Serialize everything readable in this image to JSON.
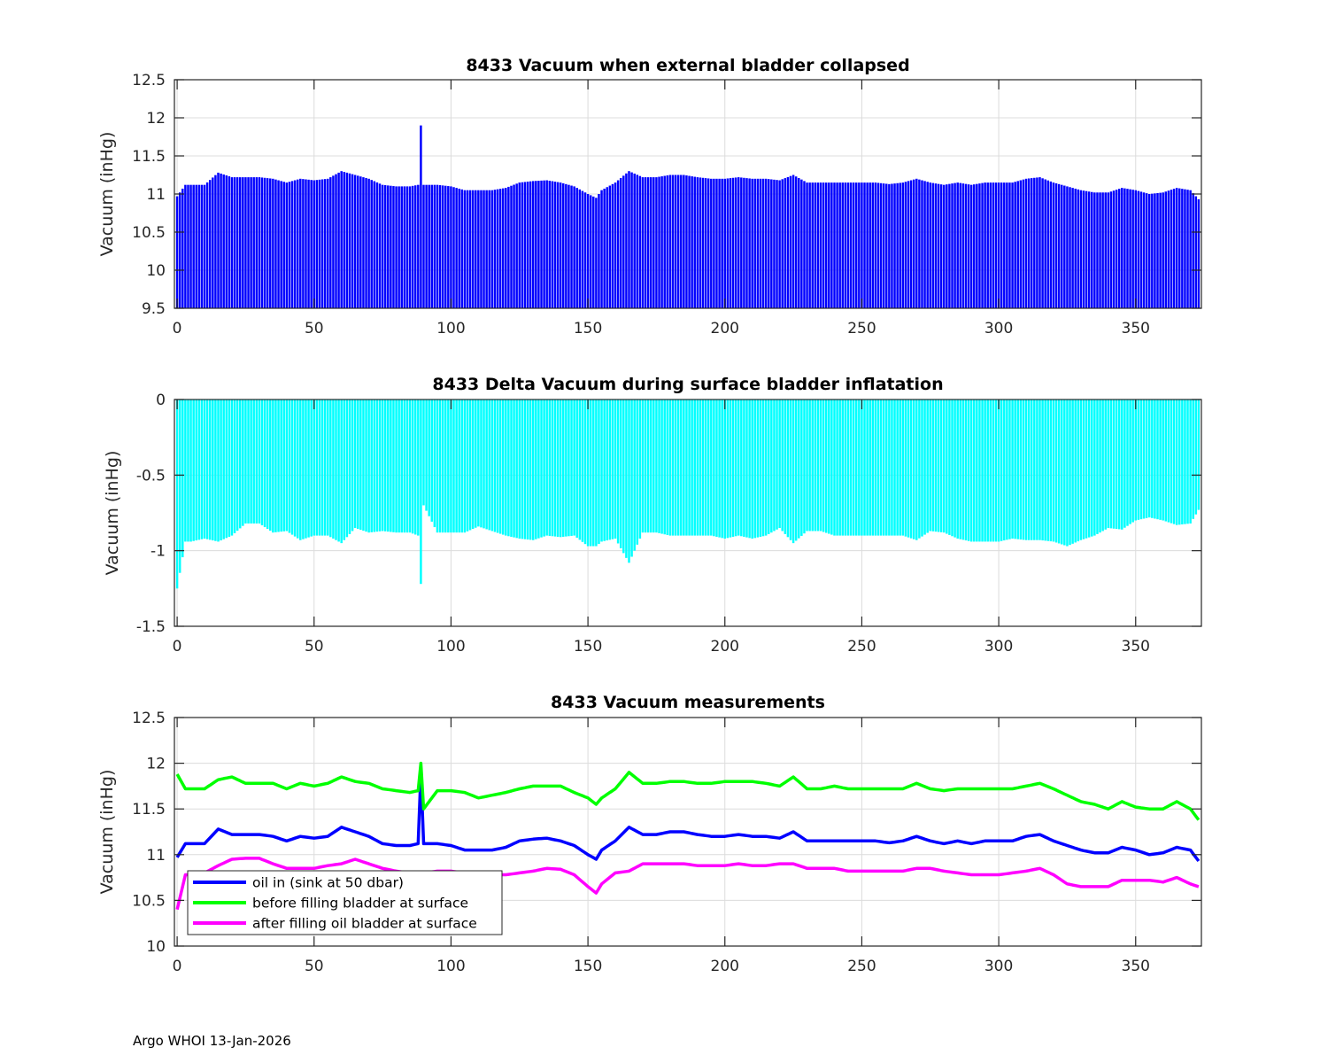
{
  "footer": "Argo WHOI 13-Jan-2026",
  "colors": {
    "oil_in": "#0000ff",
    "before": "#00ff00",
    "after": "#ff00ff",
    "delta": "#00ffff",
    "grid": "#dcdcdc",
    "axis": "#262626"
  },
  "chart_data": [
    {
      "type": "bar",
      "title": "8433 Vacuum when external bladder collapsed",
      "xlabel": "",
      "ylabel": "Vacuum (inHg)",
      "xlim": [
        -1,
        374
      ],
      "ylim": [
        9.5,
        12.5
      ],
      "xticks": [
        "0",
        "50",
        "100",
        "150",
        "200",
        "250",
        "300",
        "350"
      ],
      "yticks": [
        "9.5",
        "10",
        "10.5",
        "11",
        "11.5",
        "12",
        "12.5"
      ],
      "grid": true,
      "color": "#0000ff",
      "series_ref": "oil_in"
    },
    {
      "type": "bar",
      "title": "8433 Delta Vacuum during surface bladder inflatation",
      "xlabel": "",
      "ylabel": "Vacuum (inHg)",
      "xlim": [
        -1,
        374
      ],
      "ylim": [
        -1.5,
        0
      ],
      "xticks": [
        "0",
        "50",
        "100",
        "150",
        "200",
        "250",
        "300",
        "350"
      ],
      "yticks": [
        "-1.5",
        "-1",
        "-0.5",
        "0"
      ],
      "grid": true,
      "color": "#00ffff",
      "series_ref": "delta"
    },
    {
      "type": "line",
      "title": "8433 Vacuum measurements",
      "xlabel": "",
      "ylabel": "Vacuum (inHg)",
      "xlim": [
        -1,
        374
      ],
      "ylim": [
        10,
        12.5
      ],
      "xticks": [
        "0",
        "50",
        "100",
        "150",
        "200",
        "250",
        "300",
        "350"
      ],
      "yticks": [
        "10",
        "10.5",
        "11",
        "11.5",
        "12",
        "12.5"
      ],
      "grid": true,
      "legend_position": "bottom-left",
      "legend": [
        "oil in (sink at 50 dbar)",
        "before filling bladder at surface",
        "after filling oil bladder at surface"
      ],
      "series_refs": [
        "oil_in",
        "before",
        "after"
      ]
    }
  ],
  "series": {
    "x": [
      0,
      3,
      5,
      10,
      15,
      20,
      25,
      30,
      35,
      40,
      45,
      50,
      55,
      60,
      65,
      70,
      75,
      80,
      85,
      88,
      89,
      90,
      95,
      100,
      105,
      110,
      115,
      120,
      125,
      130,
      135,
      140,
      145,
      150,
      153,
      155,
      160,
      165,
      170,
      175,
      180,
      185,
      190,
      195,
      200,
      205,
      210,
      215,
      220,
      225,
      230,
      235,
      240,
      245,
      250,
      255,
      260,
      265,
      270,
      275,
      280,
      285,
      290,
      295,
      300,
      305,
      310,
      315,
      320,
      325,
      330,
      335,
      340,
      345,
      350,
      355,
      360,
      365,
      370,
      373
    ],
    "oil_in": [
      10.97,
      11.12,
      11.12,
      11.12,
      11.28,
      11.22,
      11.22,
      11.22,
      11.2,
      11.15,
      11.2,
      11.18,
      11.2,
      11.3,
      11.25,
      11.2,
      11.12,
      11.1,
      11.1,
      11.12,
      11.9,
      11.12,
      11.12,
      11.1,
      11.05,
      11.05,
      11.05,
      11.08,
      11.15,
      11.17,
      11.18,
      11.15,
      11.1,
      11.0,
      10.95,
      11.05,
      11.15,
      11.3,
      11.22,
      11.22,
      11.25,
      11.25,
      11.22,
      11.2,
      11.2,
      11.22,
      11.2,
      11.2,
      11.18,
      11.25,
      11.15,
      11.15,
      11.15,
      11.15,
      11.15,
      11.15,
      11.13,
      11.15,
      11.2,
      11.15,
      11.12,
      11.15,
      11.12,
      11.15,
      11.15,
      11.15,
      11.2,
      11.22,
      11.15,
      11.1,
      11.05,
      11.02,
      11.02,
      11.08,
      11.05,
      11.0,
      11.02,
      11.08,
      11.05,
      10.93
    ],
    "before": [
      11.88,
      11.72,
      11.72,
      11.72,
      11.82,
      11.85,
      11.78,
      11.78,
      11.78,
      11.72,
      11.78,
      11.75,
      11.78,
      11.85,
      11.8,
      11.78,
      11.72,
      11.7,
      11.68,
      11.7,
      12.0,
      11.5,
      11.7,
      11.7,
      11.68,
      11.62,
      11.65,
      11.68,
      11.72,
      11.75,
      11.75,
      11.75,
      11.68,
      11.62,
      11.55,
      11.62,
      11.72,
      11.9,
      11.78,
      11.78,
      11.8,
      11.8,
      11.78,
      11.78,
      11.8,
      11.8,
      11.8,
      11.78,
      11.75,
      11.85,
      11.72,
      11.72,
      11.75,
      11.72,
      11.72,
      11.72,
      11.72,
      11.72,
      11.78,
      11.72,
      11.7,
      11.72,
      11.72,
      11.72,
      11.72,
      11.72,
      11.75,
      11.78,
      11.72,
      11.65,
      11.58,
      11.55,
      11.5,
      11.58,
      11.52,
      11.5,
      11.5,
      11.58,
      11.5,
      11.38
    ],
    "after": [
      10.4,
      10.78,
      10.78,
      10.8,
      10.88,
      10.95,
      10.96,
      10.96,
      10.9,
      10.85,
      10.85,
      10.85,
      10.88,
      10.9,
      10.95,
      10.9,
      10.85,
      10.82,
      10.8,
      10.8,
      10.78,
      10.8,
      10.82,
      10.82,
      10.8,
      10.78,
      10.78,
      10.78,
      10.8,
      10.82,
      10.85,
      10.84,
      10.78,
      10.65,
      10.58,
      10.68,
      10.8,
      10.82,
      10.9,
      10.9,
      10.9,
      10.9,
      10.88,
      10.88,
      10.88,
      10.9,
      10.88,
      10.88,
      10.9,
      10.9,
      10.85,
      10.85,
      10.85,
      10.82,
      10.82,
      10.82,
      10.82,
      10.82,
      10.85,
      10.85,
      10.82,
      10.8,
      10.78,
      10.78,
      10.78,
      10.8,
      10.82,
      10.85,
      10.78,
      10.68,
      10.65,
      10.65,
      10.65,
      10.72,
      10.72,
      10.72,
      10.7,
      10.75,
      10.68,
      10.65
    ],
    "delta": [
      -1.25,
      -0.94,
      -0.94,
      -0.92,
      -0.94,
      -0.9,
      -0.82,
      -0.82,
      -0.88,
      -0.87,
      -0.93,
      -0.9,
      -0.9,
      -0.95,
      -0.85,
      -0.88,
      -0.87,
      -0.88,
      -0.88,
      -0.9,
      -1.22,
      -0.7,
      -0.88,
      -0.88,
      -0.88,
      -0.84,
      -0.87,
      -0.9,
      -0.92,
      -0.93,
      -0.9,
      -0.91,
      -0.9,
      -0.97,
      -0.97,
      -0.94,
      -0.92,
      -1.08,
      -0.88,
      -0.88,
      -0.9,
      -0.9,
      -0.9,
      -0.9,
      -0.92,
      -0.9,
      -0.92,
      -0.9,
      -0.85,
      -0.95,
      -0.87,
      -0.87,
      -0.9,
      -0.9,
      -0.9,
      -0.9,
      -0.9,
      -0.9,
      -0.93,
      -0.87,
      -0.88,
      -0.92,
      -0.94,
      -0.94,
      -0.94,
      -0.92,
      -0.93,
      -0.93,
      -0.94,
      -0.97,
      -0.93,
      -0.9,
      -0.85,
      -0.86,
      -0.8,
      -0.78,
      -0.8,
      -0.83,
      -0.82,
      -0.73
    ]
  }
}
